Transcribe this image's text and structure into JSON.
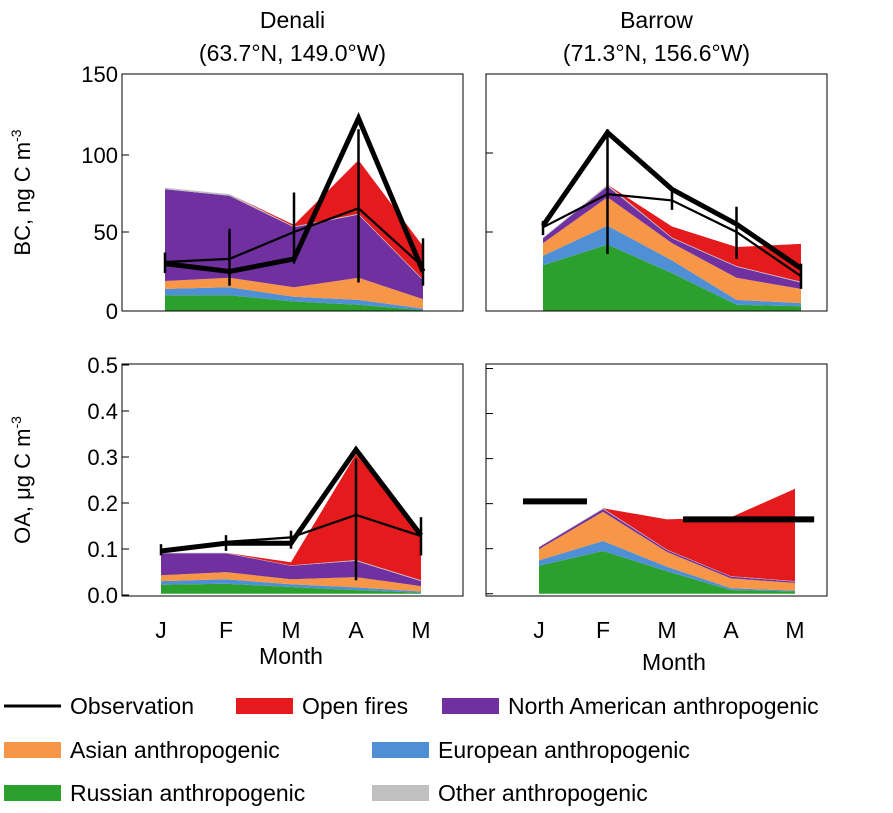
{
  "figure": {
    "xlabel": "Month",
    "legend": [
      {
        "label": "Observation",
        "kind": "line",
        "color": "#000000"
      },
      {
        "label": "Open fires",
        "kind": "patch",
        "color": "#e41a1c"
      },
      {
        "label": "North American anthropogenic",
        "kind": "patch",
        "color": "#7030a0"
      },
      {
        "label": "Asian anthropogenic",
        "kind": "patch",
        "color": "#f79646"
      },
      {
        "label": "European anthropogenic",
        "kind": "patch",
        "color": "#4f8fd6"
      },
      {
        "label": "Russian anthropogenic",
        "kind": "patch",
        "color": "#2ca02c"
      },
      {
        "label": "Other anthropogenic",
        "kind": "patch",
        "color": "#c0c0c0"
      }
    ]
  },
  "chart_data": [
    {
      "id": "bc-denali",
      "type": "area",
      "title": [
        "Denali",
        "(63.7°N, 149.0°W)"
      ],
      "ylabel_main": "BC, ng C m",
      "ylabel_sup": "-3",
      "categories": [
        "J",
        "F",
        "M",
        "A",
        "M"
      ],
      "ylim": [
        0,
        150
      ],
      "yticks": [
        0,
        50,
        100,
        150
      ],
      "show_xticklabels": false,
      "show_xlabel": false,
      "series": [
        {
          "name": "Russian anthropogenic",
          "color": "#2ca02c",
          "values": [
            10,
            10,
            6,
            4,
            0.5
          ]
        },
        {
          "name": "European anthropogenic",
          "color": "#4f8fd6",
          "values": [
            4,
            5,
            3,
            3,
            1
          ]
        },
        {
          "name": "Asian anthropogenic",
          "color": "#f79646",
          "values": [
            5,
            6,
            6,
            14,
            6
          ]
        },
        {
          "name": "North American anthropogenic",
          "color": "#7030a0",
          "values": [
            58,
            52,
            38,
            40,
            12
          ]
        },
        {
          "name": "Other anthropogenic",
          "color": "#c0c0c0",
          "values": [
            1,
            1,
            0.5,
            0.5,
            0.5
          ]
        },
        {
          "name": "Open fires",
          "color": "#e41a1c",
          "values": [
            0,
            0,
            1,
            34,
            21
          ]
        }
      ],
      "observations": [
        {
          "style": "thick",
          "values": [
            30,
            25,
            33,
            122,
            25
          ]
        },
        {
          "style": "thin",
          "values": [
            31,
            33,
            50,
            65,
            28
          ],
          "err_low": [
            24,
            16,
            30,
            18,
            16
          ],
          "err_high": [
            37,
            52,
            75,
            115,
            46
          ]
        }
      ]
    },
    {
      "id": "bc-barrow",
      "type": "area",
      "title": [
        "Barrow",
        "(71.3°N, 156.6°W)"
      ],
      "categories": [
        "J",
        "F",
        "M",
        "A",
        "M"
      ],
      "ylim": [
        0,
        150
      ],
      "yticks": [
        0,
        50,
        100,
        150
      ],
      "show_yticklabels": false,
      "show_xticklabels": false,
      "show_xlabel": false,
      "series": [
        {
          "name": "Russian anthropogenic",
          "color": "#2ca02c",
          "values": [
            29,
            42,
            24,
            4,
            3
          ]
        },
        {
          "name": "European anthropogenic",
          "color": "#4f8fd6",
          "values": [
            6,
            12,
            8,
            3,
            2
          ]
        },
        {
          "name": "Asian anthropogenic",
          "color": "#f79646",
          "values": [
            8,
            18,
            11,
            14,
            9
          ]
        },
        {
          "name": "North American anthropogenic",
          "color": "#7030a0",
          "values": [
            3,
            7,
            3,
            7,
            4
          ]
        },
        {
          "name": "Other anthropogenic",
          "color": "#c0c0c0",
          "values": [
            0.5,
            1,
            0.5,
            0.5,
            0.5
          ]
        },
        {
          "name": "Open fires",
          "color": "#e41a1c",
          "values": [
            0,
            0,
            7,
            12,
            24
          ]
        }
      ],
      "observations": [
        {
          "style": "thick",
          "values": [
            54,
            113,
            77,
            55,
            27
          ]
        },
        {
          "style": "thin",
          "values": [
            53,
            74,
            70,
            50,
            22
          ],
          "err_low": [
            48,
            36,
            64,
            33,
            14
          ],
          "err_high": [
            57,
            115,
            77,
            66,
            30
          ]
        }
      ]
    },
    {
      "id": "oa-denali",
      "type": "area",
      "ylabel_main": "OA, μg C m",
      "ylabel_sup": "-3",
      "categories": [
        "J",
        "F",
        "M",
        "A",
        "M"
      ],
      "ylim": [
        -0.005,
        0.51
      ],
      "yticks": [
        0.0,
        0.1,
        0.2,
        0.3,
        0.4,
        0.5
      ],
      "ytick_labels": [
        "0.0",
        "0.1",
        "0.2",
        "0.3",
        "0.4",
        "0.5"
      ],
      "show_xticklabels": true,
      "show_xlabel": true,
      "series": [
        {
          "name": "Russian anthropogenic",
          "color": "#2ca02c",
          "values": [
            0.02,
            0.022,
            0.015,
            0.008,
            0.002
          ]
        },
        {
          "name": "European anthropogenic",
          "color": "#4f8fd6",
          "values": [
            0.008,
            0.01,
            0.006,
            0.006,
            0.003
          ]
        },
        {
          "name": "Asian anthropogenic",
          "color": "#f79646",
          "values": [
            0.013,
            0.016,
            0.011,
            0.023,
            0.012
          ]
        },
        {
          "name": "North American anthropogenic",
          "color": "#7030a0",
          "values": [
            0.049,
            0.042,
            0.03,
            0.036,
            0.011
          ]
        },
        {
          "name": "Other anthropogenic",
          "color": "#c0c0c0",
          "values": [
            0.001,
            0.001,
            0.001,
            0.002,
            0.002
          ]
        },
        {
          "name": "Open fires",
          "color": "#e41a1c",
          "values": [
            0,
            0,
            0.007,
            0.235,
            0.1
          ]
        }
      ],
      "observations": [
        {
          "style": "thick",
          "values": [
            0.095,
            0.112,
            0.112,
            0.32,
            0.13
          ]
        },
        {
          "style": "thin",
          "values": [
            0.095,
            0.115,
            0.125,
            0.175,
            0.128
          ],
          "err_low": [
            0.085,
            0.095,
            0.1,
            0.03,
            0.085
          ],
          "err_high": [
            0.11,
            0.13,
            0.14,
            0.3,
            0.17
          ]
        }
      ]
    },
    {
      "id": "oa-barrow",
      "type": "area",
      "categories": [
        "J",
        "F",
        "M",
        "A",
        "M"
      ],
      "ylim": [
        -0.005,
        0.51
      ],
      "yticks": [
        0.0,
        0.1,
        0.2,
        0.3,
        0.4,
        0.5
      ],
      "show_yticklabels": false,
      "show_xticklabels": true,
      "show_xlabel": true,
      "series": [
        {
          "name": "Russian anthropogenic",
          "color": "#2ca02c",
          "values": [
            0.062,
            0.095,
            0.05,
            0.008,
            0.005
          ]
        },
        {
          "name": "European anthropogenic",
          "color": "#4f8fd6",
          "values": [
            0.012,
            0.022,
            0.01,
            0.004,
            0.002
          ]
        },
        {
          "name": "Asian anthropogenic",
          "color": "#f79646",
          "values": [
            0.025,
            0.065,
            0.033,
            0.022,
            0.017
          ]
        },
        {
          "name": "North American anthropogenic",
          "color": "#7030a0",
          "values": [
            0.004,
            0.006,
            0.004,
            0.004,
            0.003
          ]
        },
        {
          "name": "Other anthropogenic",
          "color": "#c0c0c0",
          "values": [
            0.001,
            0.002,
            0.001,
            0.001,
            0.001
          ]
        },
        {
          "name": "Open fires",
          "color": "#e41a1c",
          "values": [
            0,
            0,
            0.067,
            0.131,
            0.205
          ]
        }
      ],
      "obs_segments": [
        {
          "x_from": -0.25,
          "x_to": 0.75,
          "y": 0.205
        },
        {
          "x_from": 2.25,
          "x_to": 4.3,
          "y": 0.165
        }
      ]
    }
  ]
}
